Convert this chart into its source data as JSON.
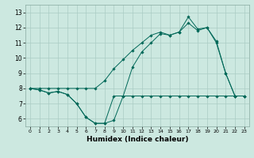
{
  "xlabel": "Humidex (Indice chaleur)",
  "bg_color": "#cce8e0",
  "line_color": "#006858",
  "grid_color": "#aaccC4",
  "xlim": [
    -0.5,
    23.5
  ],
  "ylim": [
    5.5,
    13.5
  ],
  "xticks": [
    0,
    1,
    2,
    3,
    4,
    5,
    6,
    7,
    8,
    9,
    10,
    11,
    12,
    13,
    14,
    15,
    16,
    17,
    18,
    19,
    20,
    21,
    22,
    23
  ],
  "yticks": [
    6,
    7,
    8,
    9,
    10,
    11,
    12,
    13
  ],
  "line1_x": [
    0,
    1,
    2,
    3,
    4,
    5,
    6,
    7,
    8,
    9,
    10,
    11,
    12,
    13,
    14,
    15,
    16,
    17,
    18,
    19,
    20,
    21,
    22,
    23
  ],
  "line1_y": [
    8.0,
    7.9,
    7.7,
    7.8,
    7.6,
    7.0,
    6.1,
    5.7,
    5.7,
    7.5,
    7.5,
    7.5,
    7.5,
    7.5,
    7.5,
    7.5,
    7.5,
    7.5,
    7.5,
    7.5,
    7.5,
    7.5,
    7.5,
    7.5
  ],
  "line2_x": [
    0,
    1,
    2,
    3,
    4,
    5,
    6,
    7,
    8,
    9,
    10,
    11,
    12,
    13,
    14,
    15,
    16,
    17,
    18,
    19,
    20,
    21,
    22,
    23
  ],
  "line2_y": [
    8.0,
    7.9,
    7.7,
    7.8,
    7.6,
    7.0,
    6.1,
    5.7,
    5.7,
    5.9,
    7.5,
    9.4,
    10.4,
    11.0,
    11.6,
    11.5,
    11.7,
    12.7,
    11.9,
    12.0,
    11.1,
    9.0,
    7.5,
    7.5
  ],
  "line3_x": [
    0,
    1,
    2,
    3,
    4,
    5,
    6,
    7,
    8,
    9,
    10,
    11,
    12,
    13,
    14,
    15,
    16,
    17,
    18,
    19,
    20,
    21,
    22,
    23
  ],
  "line3_y": [
    8.0,
    8.0,
    8.0,
    8.0,
    8.0,
    8.0,
    8.0,
    8.0,
    8.5,
    9.3,
    9.9,
    10.5,
    11.0,
    11.5,
    11.7,
    11.5,
    11.7,
    12.3,
    11.8,
    12.0,
    11.0,
    9.0,
    7.5,
    7.5
  ]
}
